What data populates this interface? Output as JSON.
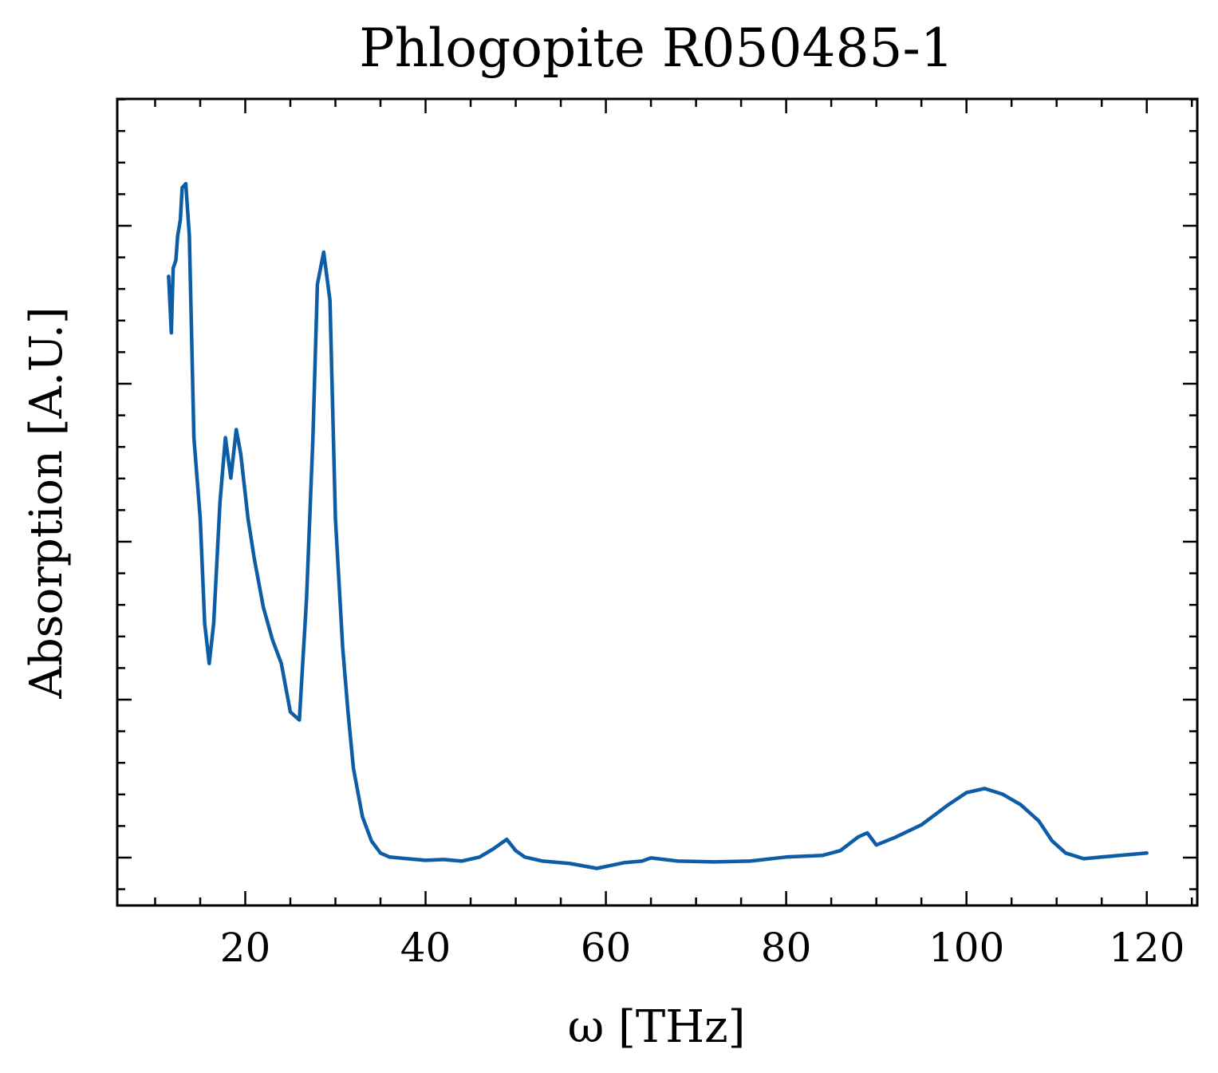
{
  "chart_data": {
    "type": "line",
    "title": "Phlogopite R050485-1",
    "xlabel": "ω [THz]",
    "ylabel": "Absorption [A.U.]",
    "xlim": [
      5.8,
      125.6
    ],
    "ylim": [
      0,
      1
    ],
    "x_ticks": [
      20,
      40,
      60,
      80,
      100,
      120
    ],
    "x_tick_labels": [
      "20",
      "40",
      "60",
      "80",
      "100",
      "120"
    ],
    "x_minor_step": 5,
    "y_tick_labels_shown": false,
    "grid": false,
    "legend": "none",
    "series": [
      {
        "color": "#0C5DA5",
        "x": [
          11.5,
          11.8,
          12.0,
          12.3,
          12.5,
          12.8,
          13.0,
          13.4,
          13.8,
          14.3,
          15.0,
          15.5,
          16.0,
          16.5,
          17.2,
          17.8,
          18.4,
          19.0,
          19.5,
          20.3,
          21.0,
          22.0,
          23.0,
          24.0,
          25.0,
          26.0,
          26.8,
          27.5,
          28.0,
          28.7,
          29.4,
          30.0,
          30.8,
          31.4,
          32.0,
          33.0,
          34.0,
          35.0,
          36.0,
          38.0,
          40.0,
          42.0,
          44.0,
          46.0,
          47.5,
          49.0,
          50.0,
          51.0,
          53.0,
          56.0,
          59.0,
          62.0,
          64.0,
          65.0,
          68.0,
          72.0,
          76.0,
          80.0,
          84.0,
          86.0,
          88.0,
          89.0,
          90.0,
          92.0,
          95.0,
          98.0,
          100.0,
          102.0,
          104.0,
          106.0,
          108.0,
          109.5,
          111.0,
          113.0,
          115.0,
          117.0,
          120.0
        ],
        "y": [
          0.78,
          0.71,
          0.79,
          0.8,
          0.83,
          0.85,
          0.89,
          0.895,
          0.83,
          0.58,
          0.48,
          0.35,
          0.3,
          0.35,
          0.5,
          0.58,
          0.53,
          0.59,
          0.56,
          0.48,
          0.43,
          0.37,
          0.33,
          0.3,
          0.24,
          0.23,
          0.38,
          0.58,
          0.77,
          0.81,
          0.75,
          0.48,
          0.32,
          0.24,
          0.17,
          0.11,
          0.08,
          0.065,
          0.06,
          0.058,
          0.056,
          0.057,
          0.055,
          0.06,
          0.07,
          0.082,
          0.068,
          0.06,
          0.055,
          0.052,
          0.046,
          0.053,
          0.055,
          0.059,
          0.055,
          0.054,
          0.055,
          0.06,
          0.062,
          0.068,
          0.085,
          0.09,
          0.075,
          0.084,
          0.1,
          0.125,
          0.14,
          0.145,
          0.138,
          0.125,
          0.105,
          0.08,
          0.065,
          0.058,
          0.06,
          0.062,
          0.065
        ]
      }
    ]
  }
}
